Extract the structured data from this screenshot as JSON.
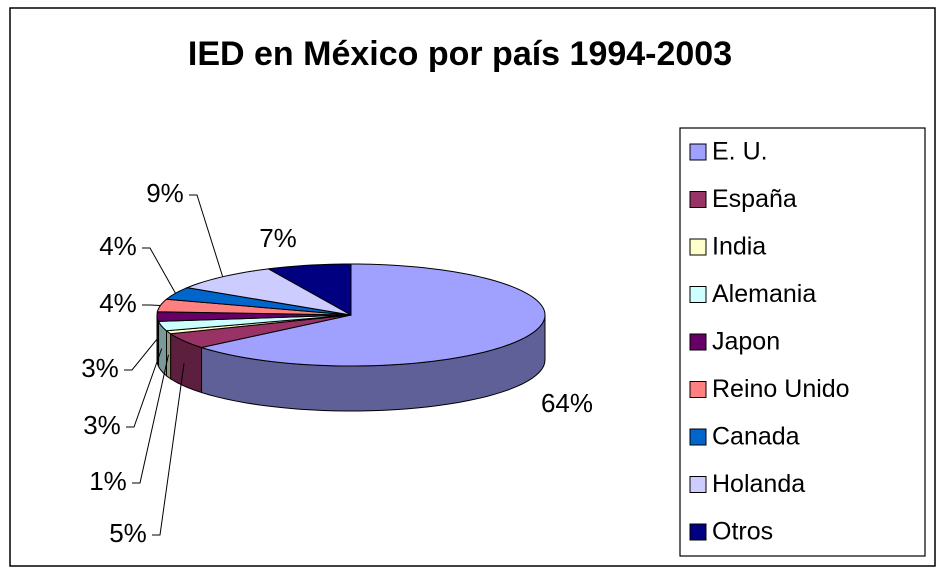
{
  "chart_data": {
    "type": "pie3d",
    "title": "IED en México por país 1994-2003",
    "categories": [
      "E. U.",
      "España",
      "India",
      "Alemania",
      "Japon",
      "Reino Unido",
      "Canada",
      "Holanda",
      "Otros"
    ],
    "values": [
      64,
      5,
      1,
      3,
      3,
      4,
      4,
      9,
      7
    ],
    "value_labels": [
      "64%",
      "5%",
      "1%",
      "3%",
      "3%",
      "4%",
      "4%",
      "9%",
      "7%"
    ],
    "colors": [
      "#a0a0ff",
      "#993366",
      "#ffffcc",
      "#ccffff",
      "#660066",
      "#ff8080",
      "#0066cc",
      "#ccccff",
      "#000080"
    ],
    "legend": "right"
  }
}
